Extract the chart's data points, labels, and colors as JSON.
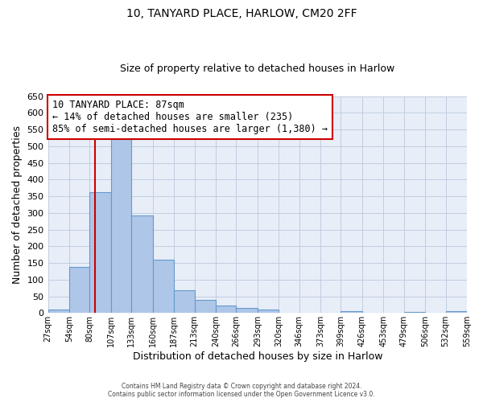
{
  "title1": "10, TANYARD PLACE, HARLOW, CM20 2FF",
  "title2": "Size of property relative to detached houses in Harlow",
  "xlabel": "Distribution of detached houses by size in Harlow",
  "ylabel": "Number of detached properties",
  "bar_color": "#aec6e8",
  "bar_edge_color": "#6699cc",
  "background_color": "#e8eef8",
  "plot_bg_color": "#e8eef8",
  "grid_color": "#c0cce0",
  "vline_x": 87,
  "vline_color": "#cc0000",
  "bin_edges": [
    27,
    54,
    80,
    107,
    133,
    160,
    187,
    213,
    240,
    266,
    293,
    320,
    346,
    373,
    399,
    426,
    453,
    479,
    506,
    532,
    559
  ],
  "bin_heights": [
    10,
    137,
    363,
    537,
    293,
    160,
    68,
    40,
    22,
    15,
    10,
    0,
    0,
    0,
    5,
    0,
    0,
    3,
    0,
    5
  ],
  "tick_labels": [
    "27sqm",
    "54sqm",
    "80sqm",
    "107sqm",
    "133sqm",
    "160sqm",
    "187sqm",
    "213sqm",
    "240sqm",
    "266sqm",
    "293sqm",
    "320sqm",
    "346sqm",
    "373sqm",
    "399sqm",
    "426sqm",
    "453sqm",
    "479sqm",
    "506sqm",
    "532sqm",
    "559sqm"
  ],
  "annotation_title": "10 TANYARD PLACE: 87sqm",
  "annotation_line1": "← 14% of detached houses are smaller (235)",
  "annotation_line2": "85% of semi-detached houses are larger (1,380) →",
  "annotation_box_color": "#ffffff",
  "annotation_box_edge": "#cc0000",
  "footer1": "Contains HM Land Registry data © Crown copyright and database right 2024.",
  "footer2": "Contains public sector information licensed under the Open Government Licence v3.0.",
  "ylim": [
    0,
    650
  ],
  "yticks": [
    0,
    50,
    100,
    150,
    200,
    250,
    300,
    350,
    400,
    450,
    500,
    550,
    600,
    650
  ],
  "fig_width": 6.0,
  "fig_height": 5.0,
  "dpi": 100
}
